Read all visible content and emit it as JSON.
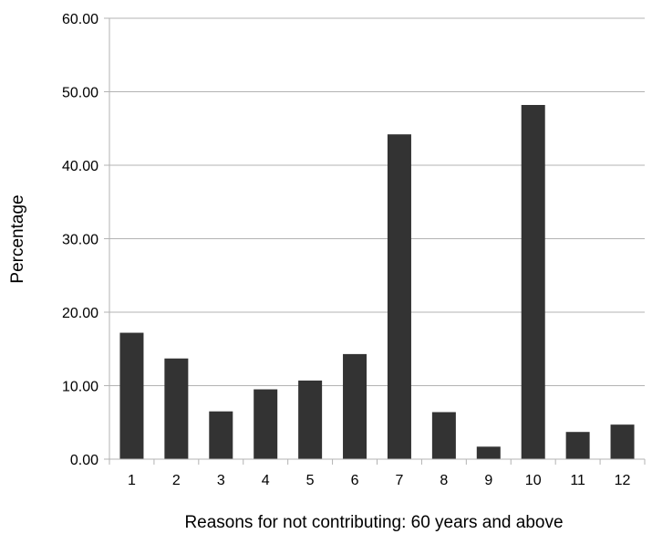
{
  "chart_data": {
    "type": "bar",
    "title": "",
    "xlabel": "Reasons for not contributing: 60 years and above",
    "ylabel": "Percentage",
    "ylim": [
      0,
      60
    ],
    "yticks": [
      "0.00",
      "10.00",
      "20.00",
      "30.00",
      "40.00",
      "50.00",
      "60.00"
    ],
    "grid": true,
    "categories": [
      "1",
      "2",
      "3",
      "4",
      "5",
      "6",
      "7",
      "8",
      "9",
      "10",
      "11",
      "12"
    ],
    "values": [
      17.2,
      13.7,
      6.5,
      9.5,
      10.7,
      14.3,
      44.2,
      6.4,
      1.7,
      48.2,
      3.7,
      4.7
    ],
    "colors": {
      "bar": "#333333",
      "grid": "#b3b3b3",
      "axis": "#b3b3b3"
    }
  }
}
